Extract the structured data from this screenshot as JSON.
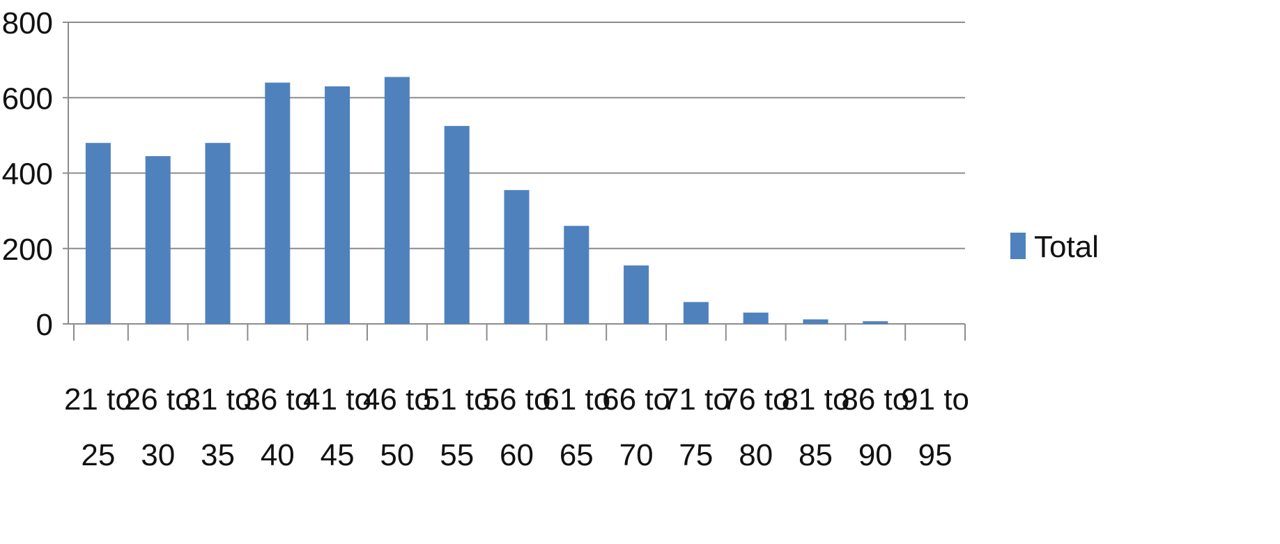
{
  "chart_data": {
    "type": "bar",
    "categories": [
      "21 to 25",
      "26 to 30",
      "31 to 35",
      "36 to 40",
      "41 to 45",
      "46 to 50",
      "51 to 55",
      "56 to 60",
      "61 to 65",
      "66 to 70",
      "71 to 75",
      "76 to 80",
      "81 to 85",
      "86 to 90",
      "91 to 95"
    ],
    "series": [
      {
        "name": "Total",
        "values": [
          480,
          445,
          480,
          640,
          630,
          655,
          525,
          355,
          260,
          155,
          58,
          30,
          12,
          7,
          0
        ],
        "color": "#4f81bd"
      }
    ],
    "y_ticks": [
      0,
      200,
      400,
      600,
      800
    ],
    "ylim": [
      0,
      800
    ],
    "grid": true,
    "legend": "right"
  }
}
